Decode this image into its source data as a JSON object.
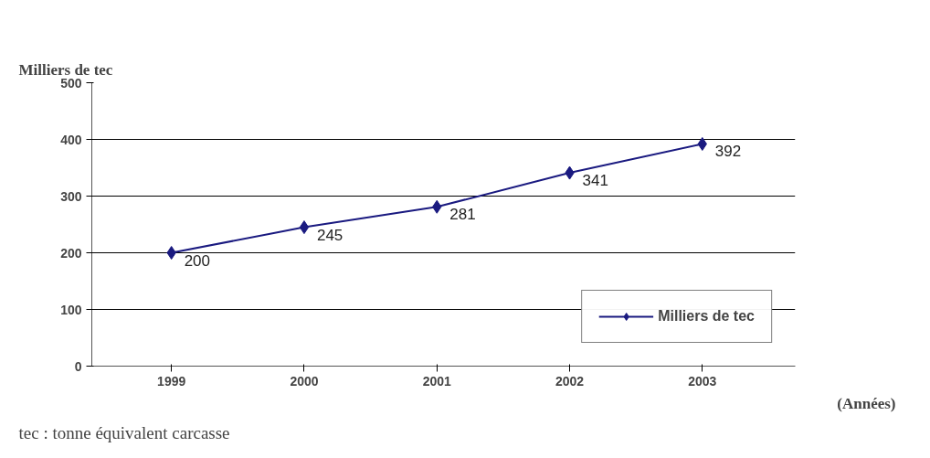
{
  "chart_data": {
    "type": "line",
    "ylabel": "Milliers de tec",
    "xlabel": "(Années)",
    "annotations": [
      "tec : tonne équivalent carcasse"
    ],
    "categories": [
      "1999",
      "2000",
      "2001",
      "2002",
      "2003"
    ],
    "series": [
      {
        "name": "Milliers de tec",
        "color": "#1a1a80",
        "values": [
          200,
          245,
          281,
          341,
          392
        ]
      }
    ],
    "ylim": [
      0,
      500
    ],
    "yticks": [
      0,
      100,
      200,
      300,
      400,
      500
    ],
    "grid": "y",
    "legend": "bottom right",
    "marker": "diamond",
    "line_style": "solid",
    "data_labels": true
  }
}
